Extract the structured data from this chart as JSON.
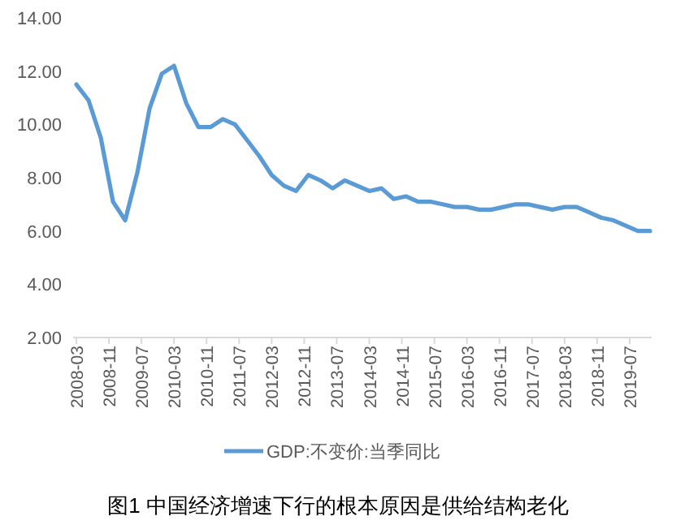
{
  "chart_data": {
    "type": "line",
    "annotations": [
      "图1 中国经济增速下行的根本原因是供给结构老化"
    ],
    "x": [
      "2008-03",
      "2008-06",
      "2008-09",
      "2008-12",
      "2009-03",
      "2009-06",
      "2009-09",
      "2009-12",
      "2010-03",
      "2010-06",
      "2010-09",
      "2010-12",
      "2011-03",
      "2011-06",
      "2011-09",
      "2011-12",
      "2012-03",
      "2012-06",
      "2012-09",
      "2012-12",
      "2013-03",
      "2013-06",
      "2013-09",
      "2013-12",
      "2014-03",
      "2014-06",
      "2014-09",
      "2014-12",
      "2015-03",
      "2015-06",
      "2015-09",
      "2015-12",
      "2016-03",
      "2016-06",
      "2016-09",
      "2016-12",
      "2017-03",
      "2017-06",
      "2017-09",
      "2017-12",
      "2018-03",
      "2018-06",
      "2018-09",
      "2018-12",
      "2019-03",
      "2019-06",
      "2019-09",
      "2019-12"
    ],
    "series": [
      {
        "name": "GDP:不变价:当季同比",
        "color": "#5b9bd5",
        "values": [
          11.5,
          10.9,
          9.5,
          7.1,
          6.4,
          8.2,
          10.6,
          11.9,
          12.2,
          10.8,
          9.9,
          9.9,
          10.2,
          10.0,
          9.4,
          8.8,
          8.1,
          7.7,
          7.5,
          8.1,
          7.9,
          7.6,
          7.9,
          7.7,
          7.5,
          7.6,
          7.2,
          7.3,
          7.1,
          7.1,
          7.0,
          6.9,
          6.9,
          6.8,
          6.8,
          6.9,
          7.0,
          7.0,
          6.9,
          6.8,
          6.9,
          6.9,
          6.7,
          6.5,
          6.4,
          6.2,
          6.0,
          6.0
        ]
      }
    ],
    "xlim": [
      "2008-03",
      "2019-12"
    ],
    "xticks": [
      "2008-03",
      "2008-11",
      "2009-07",
      "2010-03",
      "2010-11",
      "2011-07",
      "2012-03",
      "2012-11",
      "2013-07",
      "2014-03",
      "2014-11",
      "2015-07",
      "2016-03",
      "2016-11",
      "2017-07",
      "2018-03",
      "2018-11",
      "2019-07"
    ],
    "ylim": [
      2,
      14
    ],
    "yticks": [
      {
        "value": 2,
        "label": "2.00"
      },
      {
        "value": 4,
        "label": "4.00"
      },
      {
        "value": 6,
        "label": "6.00"
      },
      {
        "value": 8,
        "label": "8.00"
      },
      {
        "value": 10,
        "label": "10.00"
      },
      {
        "value": 12,
        "label": "12.00"
      },
      {
        "value": 14,
        "label": "14.00"
      }
    ],
    "legend": "bottom",
    "marker": "none",
    "line_style": "solid"
  }
}
